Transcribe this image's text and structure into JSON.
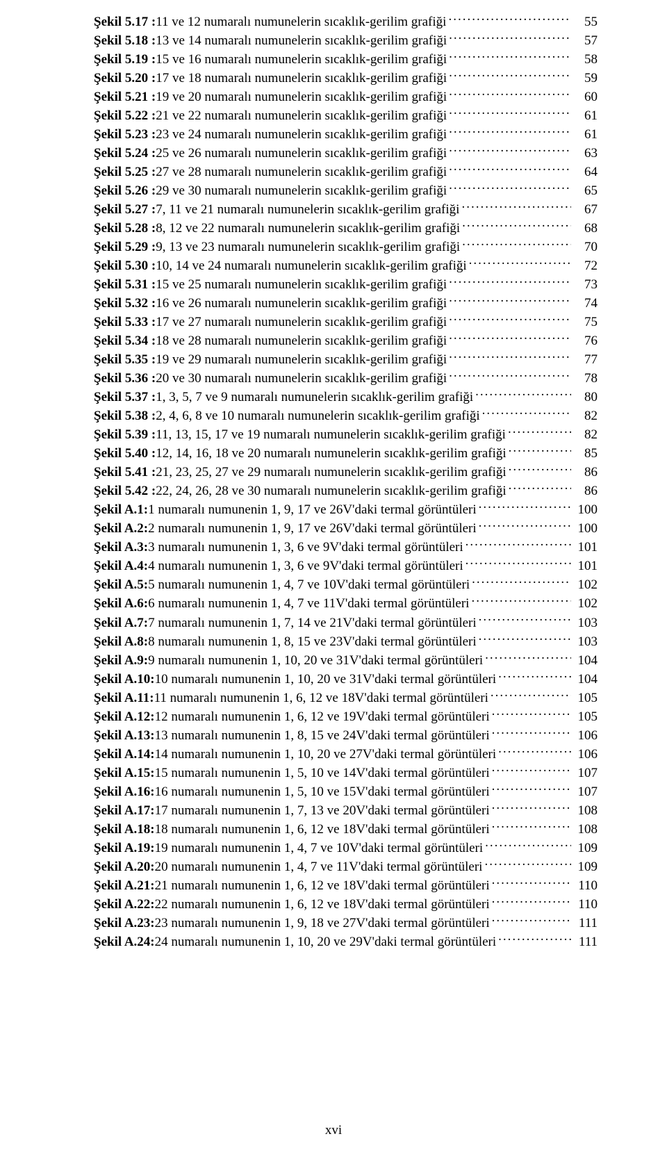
{
  "footer": "xvi",
  "entries": [
    {
      "label": "Şekil 5.17 :",
      "text": " 11 ve 12 numaralı numunelerin sıcaklık-gerilim grafiği",
      "page": "55"
    },
    {
      "label": "Şekil 5.18 :",
      "text": " 13 ve 14 numaralı numunelerin sıcaklık-gerilim grafiği",
      "page": "57"
    },
    {
      "label": "Şekil 5.19 :",
      "text": " 15 ve 16 numaralı numunelerin sıcaklık-gerilim grafiği",
      "page": "58"
    },
    {
      "label": "Şekil 5.20 :",
      "text": " 17 ve 18 numaralı numunelerin sıcaklık-gerilim grafiği",
      "page": "59"
    },
    {
      "label": "Şekil 5.21 :",
      "text": " 19 ve 20 numaralı numunelerin sıcaklık-gerilim grafiği",
      "page": "60"
    },
    {
      "label": "Şekil 5.22 :",
      "text": " 21 ve 22 numaralı numunelerin sıcaklık-gerilim grafiği",
      "page": "61"
    },
    {
      "label": "Şekil 5.23 :",
      "text": " 23 ve 24 numaralı numunelerin sıcaklık-gerilim grafiği",
      "page": "61"
    },
    {
      "label": "Şekil 5.24 :",
      "text": " 25 ve 26 numaralı numunelerin sıcaklık-gerilim grafiği",
      "page": "63"
    },
    {
      "label": "Şekil 5.25 :",
      "text": " 27 ve 28 numaralı numunelerin sıcaklık-gerilim grafiği",
      "page": "64"
    },
    {
      "label": "Şekil 5.26 :",
      "text": " 29 ve 30 numaralı numunelerin sıcaklık-gerilim grafiği",
      "page": "65"
    },
    {
      "label": "Şekil 5.27 :",
      "text": " 7, 11 ve 21 numaralı numunelerin sıcaklık-gerilim grafiği",
      "page": "67"
    },
    {
      "label": "Şekil 5.28 :",
      "text": " 8, 12 ve 22 numaralı numunelerin sıcaklık-gerilim grafiği",
      "page": "68"
    },
    {
      "label": "Şekil 5.29 :",
      "text": " 9, 13 ve 23 numaralı numunelerin sıcaklık-gerilim grafiği",
      "page": "70"
    },
    {
      "label": "Şekil 5.30 :",
      "text": " 10, 14 ve 24 numaralı numunelerin sıcaklık-gerilim grafiği",
      "page": "72"
    },
    {
      "label": "Şekil 5.31 :",
      "text": " 15 ve 25 numaralı numunelerin sıcaklık-gerilim grafiği",
      "page": "73"
    },
    {
      "label": "Şekil 5.32 :",
      "text": " 16 ve 26 numaralı numunelerin sıcaklık-gerilim grafiği",
      "page": "74"
    },
    {
      "label": "Şekil 5.33 :",
      "text": " 17 ve 27 numaralı numunelerin sıcaklık-gerilim grafiği",
      "page": "75"
    },
    {
      "label": "Şekil 5.34 :",
      "text": " 18 ve 28 numaralı numunelerin sıcaklık-gerilim grafiği",
      "page": "76"
    },
    {
      "label": "Şekil 5.35 :",
      "text": " 19 ve 29 numaralı numunelerin sıcaklık-gerilim grafiği",
      "page": "77"
    },
    {
      "label": "Şekil 5.36 :",
      "text": " 20 ve 30 numaralı numunelerin sıcaklık-gerilim grafiği",
      "page": "78"
    },
    {
      "label": "Şekil 5.37 :",
      "text": " 1, 3, 5, 7 ve 9 numaralı numunelerin sıcaklık-gerilim grafiği",
      "page": "80"
    },
    {
      "label": "Şekil 5.38 :",
      "text": " 2, 4, 6, 8 ve 10 numaralı numunelerin sıcaklık-gerilim grafiği",
      "page": "82"
    },
    {
      "label": "Şekil 5.39 :",
      "text": " 11, 13, 15, 17 ve 19 numaralı numunelerin sıcaklık-gerilim grafiği",
      "page": "82"
    },
    {
      "label": "Şekil 5.40 :",
      "text": " 12, 14, 16, 18 ve 20 numaralı numunelerin sıcaklık-gerilim grafiği",
      "page": "85"
    },
    {
      "label": "Şekil 5.41 :",
      "text": " 21, 23, 25, 27 ve 29 numaralı numunelerin sıcaklık-gerilim grafiği",
      "page": "86"
    },
    {
      "label": "Şekil 5.42 :",
      "text": " 22, 24, 26, 28 ve 30 numaralı numunelerin sıcaklık-gerilim grafiği",
      "page": "86"
    },
    {
      "label": "Şekil A.1:",
      "text": " 1 numaralı numunenin 1, 9, 17 ve 26V'daki termal görüntüleri",
      "page": "100"
    },
    {
      "label": "Şekil A.2:",
      "text": " 2 numaralı numunenin 1, 9, 17 ve 26V'daki termal görüntüleri",
      "page": "100"
    },
    {
      "label": "Şekil A.3:",
      "text": " 3 numaralı numunenin 1, 3, 6 ve 9V'daki termal görüntüleri",
      "page": "101"
    },
    {
      "label": "Şekil A.4:",
      "text": " 4 numaralı numunenin 1, 3, 6 ve 9V'daki termal görüntüleri",
      "page": "101"
    },
    {
      "label": "Şekil A.5:",
      "text": " 5 numaralı numunenin 1, 4, 7 ve 10V'daki termal görüntüleri",
      "page": "102"
    },
    {
      "label": "Şekil A.6:",
      "text": " 6 numaralı numunenin 1, 4, 7 ve 11V'daki termal görüntüleri",
      "page": "102"
    },
    {
      "label": "Şekil A.7:",
      "text": " 7 numaralı numunenin 1, 7, 14 ve 21V'daki termal görüntüleri",
      "page": "103"
    },
    {
      "label": "Şekil A.8:",
      "text": " 8 numaralı numunenin 1, 8, 15 ve 23V'daki termal görüntüleri",
      "page": "103"
    },
    {
      "label": "Şekil A.9:",
      "text": " 9 numaralı numunenin 1, 10, 20 ve 31V'daki termal görüntüleri",
      "page": "104"
    },
    {
      "label": "Şekil A.10:",
      "text": " 10 numaralı numunenin 1, 10, 20 ve 31V'daki termal görüntüleri",
      "page": "104"
    },
    {
      "label": "Şekil A.11:",
      "text": " 11 numaralı numunenin 1, 6, 12 ve 18V'daki termal görüntüleri",
      "page": "105"
    },
    {
      "label": "Şekil A.12:",
      "text": " 12 numaralı numunenin 1, 6, 12 ve 19V'daki termal görüntüleri",
      "page": "105"
    },
    {
      "label": "Şekil A.13:",
      "text": " 13 numaralı numunenin 1, 8, 15 ve 24V'daki termal görüntüleri",
      "page": "106"
    },
    {
      "label": "Şekil A.14:",
      "text": " 14 numaralı numunenin 1, 10, 20 ve 27V'daki termal görüntüleri",
      "page": "106"
    },
    {
      "label": "Şekil A.15:",
      "text": " 15 numaralı numunenin 1, 5, 10 ve 14V'daki termal görüntüleri",
      "page": "107"
    },
    {
      "label": "Şekil A.16:",
      "text": " 16 numaralı numunenin 1, 5, 10 ve 15V'daki termal görüntüleri",
      "page": "107"
    },
    {
      "label": "Şekil A.17:",
      "text": " 17 numaralı numunenin 1, 7, 13 ve 20V'daki termal görüntüleri",
      "page": "108"
    },
    {
      "label": "Şekil A.18:",
      "text": " 18 numaralı numunenin 1, 6, 12 ve 18V'daki termal görüntüleri",
      "page": "108"
    },
    {
      "label": "Şekil A.19:",
      "text": " 19 numaralı numunenin 1, 4, 7 ve 10V'daki termal görüntüleri",
      "page": "109"
    },
    {
      "label": "Şekil A.20:",
      "text": " 20 numaralı numunenin 1, 4, 7 ve 11V'daki termal görüntüleri",
      "page": "109"
    },
    {
      "label": "Şekil A.21:",
      "text": " 21 numaralı numunenin 1, 6, 12 ve 18V'daki termal görüntüleri",
      "page": "110"
    },
    {
      "label": "Şekil A.22:",
      "text": " 22 numaralı numunenin 1, 6, 12 ve 18V'daki termal görüntüleri",
      "page": "110"
    },
    {
      "label": "Şekil A.23:",
      "text": " 23 numaralı numunenin 1, 9, 18 ve 27V'daki termal görüntüleri",
      "page": "111"
    },
    {
      "label": "Şekil A.24:",
      "text": " 24 numaralı numunenin 1, 10, 20 ve 29V'daki termal görüntüleri",
      "page": "111"
    }
  ]
}
